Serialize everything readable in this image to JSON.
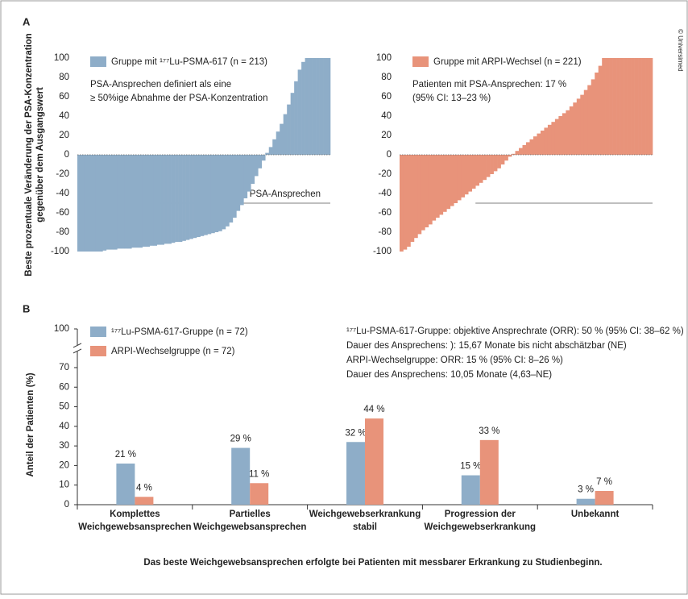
{
  "panels": [
    "A",
    "B"
  ],
  "copyright": "© Universimed",
  "chart_data": [
    {
      "type": "waterfall",
      "y_label": [
        "Beste prozentuale Veränderung der PSA-Konzentration",
        "gegenüber dem Ausgangswert"
      ],
      "legend": "Gruppe mit ¹⁷⁷Lu-PSMA-617 (n = 213)",
      "color": "#8eadc8",
      "annotations": [
        "PSA-Ansprechen definiert als eine",
        "≥ 50%ige Abnahme der PSA-Konzentration"
      ],
      "threshold": -50,
      "threshold_label": "PSA-Ansprechen",
      "ylim": [
        -100,
        100
      ],
      "yticks": [
        -100,
        -80,
        -60,
        -40,
        -20,
        0,
        20,
        40,
        60,
        80,
        100
      ],
      "values": [
        -100,
        -100,
        -100,
        -100,
        -100,
        -100,
        -100,
        -99,
        -98,
        -98,
        -98,
        -97,
        -97,
        -97,
        -97,
        -96,
        -96,
        -96,
        -95,
        -95,
        -94,
        -94,
        -93,
        -93,
        -92,
        -92,
        -91,
        -90,
        -90,
        -89,
        -88,
        -87,
        -86,
        -85,
        -84,
        -83,
        -82,
        -81,
        -80,
        -79,
        -77,
        -74,
        -70,
        -65,
        -58,
        -52,
        -45,
        -38,
        -30,
        -22,
        -14,
        -6,
        2,
        8,
        16,
        24,
        32,
        42,
        52,
        64,
        76,
        88,
        96,
        100,
        100,
        100,
        100,
        100,
        100,
        100
      ]
    },
    {
      "type": "waterfall",
      "legend": "Gruppe mit ARPI-Wechsel (n = 221)",
      "color": "#e8937a",
      "annotations": [
        "Patienten mit PSA-Ansprechen: 17 %",
        "(95% CI: 13–23 %)"
      ],
      "threshold": -50,
      "ylim": [
        -100,
        100
      ],
      "yticks": [
        -100,
        -80,
        -60,
        -40,
        -20,
        0,
        20,
        40,
        60,
        80,
        100
      ],
      "values": [
        -100,
        -98,
        -95,
        -90,
        -86,
        -82,
        -78,
        -75,
        -72,
        -68,
        -65,
        -62,
        -59,
        -56,
        -53,
        -50,
        -47,
        -44,
        -41,
        -38,
        -35,
        -32,
        -29,
        -26,
        -23,
        -20,
        -17,
        -14,
        -10,
        -6,
        -2,
        1,
        4,
        7,
        10,
        13,
        16,
        19,
        22,
        25,
        28,
        31,
        34,
        37,
        40,
        43,
        46,
        50,
        54,
        58,
        62,
        67,
        72,
        78,
        85,
        92,
        100,
        100,
        100,
        100,
        100,
        100,
        100,
        100,
        100,
        100,
        100,
        100,
        100,
        100
      ]
    },
    {
      "type": "bar",
      "y_label": "Anteil der Patienten (%)",
      "categories": [
        [
          "Komplettes",
          "Weichgewebsansprechen"
        ],
        [
          "Partielles",
          "Weichgewebsansprechen"
        ],
        [
          "Weichgewebserkrankung",
          "stabil"
        ],
        [
          "Progression der",
          "Weichgewebserkrankung"
        ],
        [
          "Unbekannt"
        ]
      ],
      "series": [
        {
          "name": "¹⁷⁷Lu-PSMA-617-Gruppe (n = 72)",
          "color": "#8eadc8",
          "values": [
            21,
            29,
            32,
            15,
            3
          ],
          "value_labels": [
            "21 %",
            "29 %",
            "32 %",
            "15 %",
            "3 %"
          ]
        },
        {
          "name": "ARPI-Wechselgruppe (n = 72)",
          "color": "#e8937a",
          "values": [
            4,
            11,
            44,
            33,
            7
          ],
          "value_labels": [
            "4 %",
            "11 %",
            "44 %",
            "33 %",
            "7 %"
          ]
        }
      ],
      "annotations": [
        "¹⁷⁷Lu-PSMA-617-Gruppe: objektive Ansprechrate (ORR): 50 % (95% CI: 38–62 %)",
        "Dauer des Ansprechens: ): 15,67 Monate bis nicht abschätzbar (NE)",
        "ARPI-Wechselgruppe: ORR: 15 % (95% CI: 8–26 %)",
        "Dauer des Ansprechens: 10,05 Monate (4,63–NE)"
      ],
      "ylim": [
        0,
        100
      ],
      "yticks": [
        0,
        10,
        20,
        30,
        40,
        50,
        60,
        70,
        100
      ],
      "axis_break": true,
      "footnote": "Das beste Weichgewebsansprechen erfolgte bei Patienten mit messbarer Erkrankung zu Studienbeginn."
    }
  ]
}
